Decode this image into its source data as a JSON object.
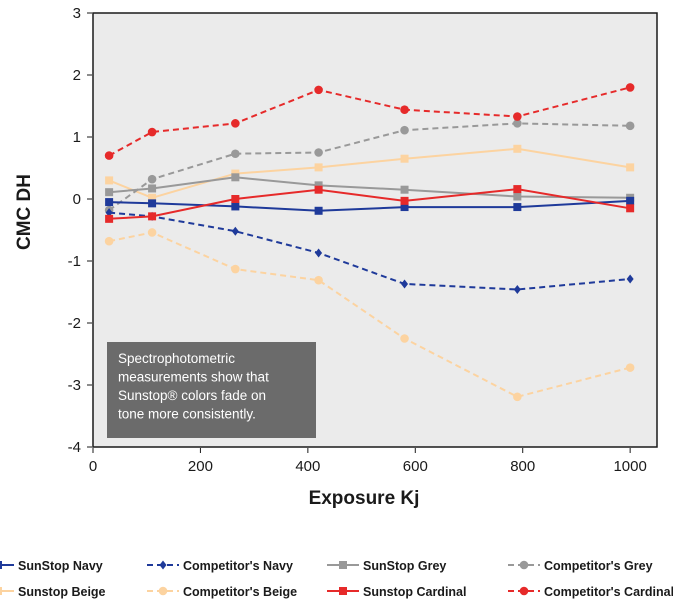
{
  "chart_data": {
    "type": "line",
    "title": "",
    "xlabel": "Exposure Kj",
    "ylabel": "CMC DH",
    "xlim": [
      0,
      1050
    ],
    "ylim": [
      -4,
      3
    ],
    "x_ticks": [
      0,
      200,
      400,
      600,
      800,
      1000
    ],
    "y_ticks": [
      3,
      2,
      1,
      0,
      -1,
      -2,
      -3,
      -4
    ],
    "grid": false,
    "legend_position": "bottom",
    "annotation": {
      "lines": [
        "Spectrophotometric",
        "measurements show that",
        "Sunstop® colors fade on",
        "tone more consistently."
      ],
      "background": "#6b6b6b"
    },
    "x": [
      30,
      110,
      265,
      420,
      580,
      790,
      1000
    ],
    "series": [
      {
        "name": "SunStop Navy",
        "color": "#1f3a9a",
        "dashed": false,
        "marker": "square",
        "values": [
          -0.05,
          -0.07,
          -0.12,
          -0.19,
          -0.13,
          -0.13,
          -0.03
        ]
      },
      {
        "name": "Competitor's  Navy",
        "color": "#1f3a9a",
        "dashed": true,
        "marker": "diamond",
        "values": [
          -0.22,
          -0.28,
          -0.52,
          -0.87,
          -1.37,
          -1.46,
          -1.29
        ]
      },
      {
        "name": "SunStop Grey",
        "color": "#999999",
        "dashed": false,
        "marker": "square",
        "values": [
          0.11,
          0.17,
          0.35,
          0.22,
          0.15,
          0.04,
          0.02
        ]
      },
      {
        "name": "Competitor's  Grey",
        "color": "#999999",
        "dashed": true,
        "marker": "circle",
        "values": [
          -0.18,
          0.32,
          0.73,
          0.75,
          1.11,
          1.22,
          1.18
        ]
      },
      {
        "name": "Sunstop Beige",
        "color": "#fcd3a0",
        "dashed": false,
        "marker": "square",
        "values": [
          0.3,
          0.02,
          0.41,
          0.51,
          0.65,
          0.81,
          0.51
        ]
      },
      {
        "name": "Competitor's Beige",
        "color": "#fcd3a0",
        "dashed": true,
        "marker": "circle",
        "values": [
          -0.68,
          -0.54,
          -1.13,
          -1.31,
          -2.25,
          -3.19,
          -2.72
        ]
      },
      {
        "name": "Sunstop Cardinal",
        "color": "#e62a2a",
        "dashed": false,
        "marker": "square",
        "values": [
          -0.32,
          -0.28,
          0.0,
          0.15,
          -0.03,
          0.16,
          -0.15
        ]
      },
      {
        "name": "Competitor's  Cardinal",
        "color": "#e62a2a",
        "dashed": true,
        "marker": "circle",
        "values": [
          0.7,
          1.08,
          1.22,
          1.76,
          1.44,
          1.33,
          1.8
        ]
      }
    ]
  }
}
